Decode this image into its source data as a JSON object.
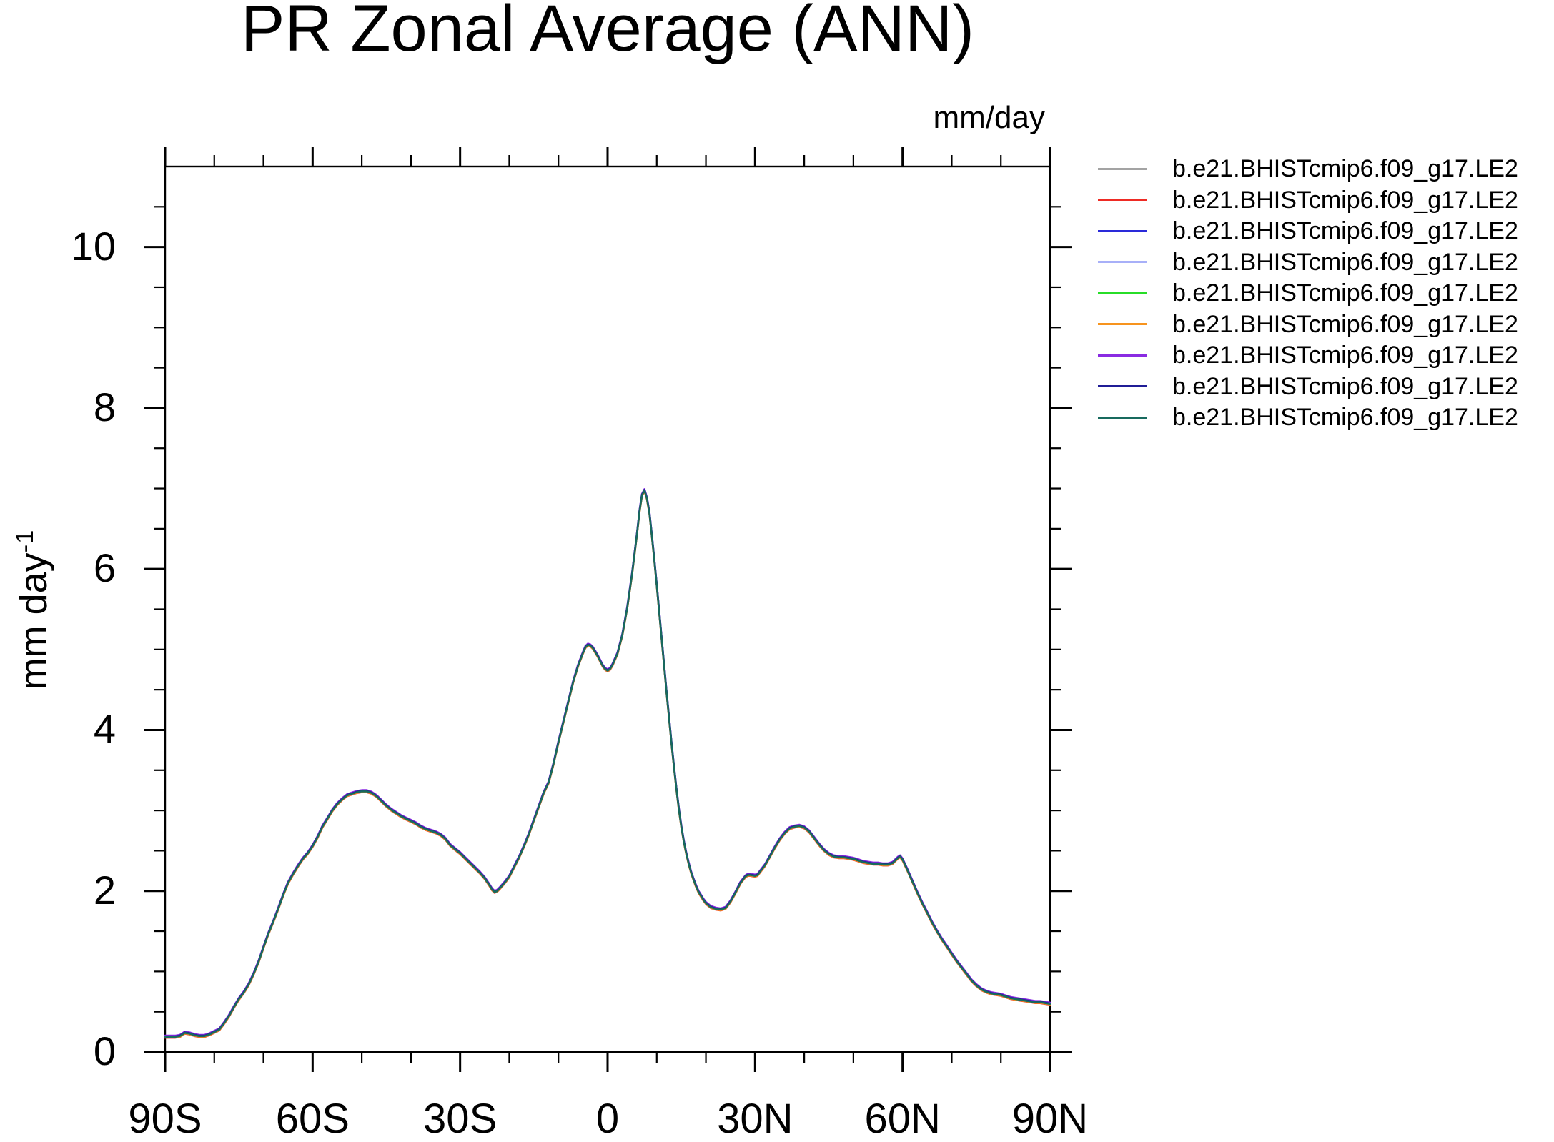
{
  "title": "PR Zonal Average (ANN)",
  "units_label": "mm/day",
  "y_axis_label": {
    "text": "mm day",
    "sup": "-1"
  },
  "legend": {
    "entries": [
      {
        "label": "b.e21.BHISTcmip6.f09_g17.LE2",
        "color": "#a3a3a3"
      },
      {
        "label": "b.e21.BHISTcmip6.f09_g17.LE2",
        "color": "#ee2b24"
      },
      {
        "label": "b.e21.BHISTcmip6.f09_g17.LE2",
        "color": "#2a2ad9"
      },
      {
        "label": "b.e21.BHISTcmip6.f09_g17.LE2",
        "color": "#a8b0f8"
      },
      {
        "label": "b.e21.BHISTcmip6.f09_g17.LE2",
        "color": "#27dd27"
      },
      {
        "label": "b.e21.BHISTcmip6.f09_g17.LE2",
        "color": "#f7941e"
      },
      {
        "label": "b.e21.BHISTcmip6.f09_g17.LE2",
        "color": "#8a2be2"
      },
      {
        "label": "b.e21.BHISTcmip6.f09_g17.LE2",
        "color": "#201d96"
      },
      {
        "label": "b.e21.BHISTcmip6.f09_g17.LE2",
        "color": "#186a5e"
      }
    ]
  },
  "chart_data": {
    "type": "line",
    "title": "PR Zonal Average (ANN)",
    "ylabel": "mm day^-1",
    "units": "mm/day",
    "xlim": [
      -90,
      90
    ],
    "ylim": [
      0,
      11
    ],
    "x_ticks_deg": [
      -90,
      -60,
      -30,
      0,
      30,
      60,
      90
    ],
    "x_tick_labels": [
      "90S",
      "60S",
      "30S",
      "0",
      "30N",
      "60N",
      "90N"
    ],
    "y_ticks": [
      0,
      2,
      4,
      6,
      8,
      10
    ],
    "y_tick_labels": [
      "0",
      "2",
      "4",
      "6",
      "8",
      "10"
    ],
    "x_minor_step_deg": 10,
    "y_minor_step": 0.5,
    "grid": false,
    "legend_position": "outside-upper-right",
    "overlap_note": "all 9 ensemble members visually coincide along one curve",
    "members": [
      {
        "name": "b.e21.BHISTcmip6.f09_g17.LE2",
        "color": "#a3a3a3"
      },
      {
        "name": "b.e21.BHISTcmip6.f09_g17.LE2",
        "color": "#ee2b24"
      },
      {
        "name": "b.e21.BHISTcmip6.f09_g17.LE2",
        "color": "#2a2ad9"
      },
      {
        "name": "b.e21.BHISTcmip6.f09_g17.LE2",
        "color": "#a8b0f8"
      },
      {
        "name": "b.e21.BHISTcmip6.f09_g17.LE2",
        "color": "#27dd27"
      },
      {
        "name": "b.e21.BHISTcmip6.f09_g17.LE2",
        "color": "#f7941e"
      },
      {
        "name": "b.e21.BHISTcmip6.f09_g17.LE2",
        "color": "#8a2be2"
      },
      {
        "name": "b.e21.BHISTcmip6.f09_g17.LE2",
        "color": "#201d96"
      },
      {
        "name": "b.e21.BHISTcmip6.f09_g17.LE2",
        "color": "#186a5e"
      }
    ],
    "shared_profile_lat_mmday": [
      [
        -90,
        0.19
      ],
      [
        -88,
        0.19
      ],
      [
        -87,
        0.2
      ],
      [
        -86,
        0.24
      ],
      [
        -85,
        0.23
      ],
      [
        -84,
        0.21
      ],
      [
        -83,
        0.2
      ],
      [
        -82,
        0.2
      ],
      [
        -81,
        0.22
      ],
      [
        -80,
        0.25
      ],
      [
        -79,
        0.28
      ],
      [
        -78,
        0.36
      ],
      [
        -77,
        0.45
      ],
      [
        -76,
        0.56
      ],
      [
        -75,
        0.66
      ],
      [
        -74,
        0.74
      ],
      [
        -73,
        0.84
      ],
      [
        -72,
        0.97
      ],
      [
        -71,
        1.12
      ],
      [
        -70,
        1.3
      ],
      [
        -69,
        1.47
      ],
      [
        -68,
        1.62
      ],
      [
        -67,
        1.78
      ],
      [
        -66,
        1.95
      ],
      [
        -65,
        2.1
      ],
      [
        -64,
        2.21
      ],
      [
        -63,
        2.31
      ],
      [
        -62,
        2.4
      ],
      [
        -61,
        2.47
      ],
      [
        -60,
        2.56
      ],
      [
        -59,
        2.67
      ],
      [
        -58,
        2.8
      ],
      [
        -57,
        2.9
      ],
      [
        -56,
        3.0
      ],
      [
        -55,
        3.08
      ],
      [
        -54,
        3.14
      ],
      [
        -53,
        3.19
      ],
      [
        -52,
        3.21
      ],
      [
        -51,
        3.23
      ],
      [
        -50,
        3.24
      ],
      [
        -49,
        3.24
      ],
      [
        -48,
        3.22
      ],
      [
        -47,
        3.18
      ],
      [
        -46,
        3.12
      ],
      [
        -45,
        3.06
      ],
      [
        -44,
        3.01
      ],
      [
        -43,
        2.97
      ],
      [
        -42,
        2.93
      ],
      [
        -41,
        2.9
      ],
      [
        -40,
        2.87
      ],
      [
        -39,
        2.84
      ],
      [
        -38,
        2.8
      ],
      [
        -37,
        2.77
      ],
      [
        -36,
        2.75
      ],
      [
        -35,
        2.73
      ],
      [
        -34,
        2.7
      ],
      [
        -33,
        2.65
      ],
      [
        -32,
        2.57
      ],
      [
        -31,
        2.52
      ],
      [
        -30,
        2.47
      ],
      [
        -29,
        2.41
      ],
      [
        -28,
        2.35
      ],
      [
        -27,
        2.29
      ],
      [
        -26,
        2.23
      ],
      [
        -25,
        2.16
      ],
      [
        -24,
        2.07
      ],
      [
        -23.5,
        2.02
      ],
      [
        -23,
        1.99
      ],
      [
        -22.5,
        2.0
      ],
      [
        -22,
        2.03
      ],
      [
        -21,
        2.1
      ],
      [
        -20,
        2.18
      ],
      [
        -19,
        2.3
      ],
      [
        -18,
        2.42
      ],
      [
        -17,
        2.56
      ],
      [
        -16,
        2.71
      ],
      [
        -15,
        2.88
      ],
      [
        -14,
        3.05
      ],
      [
        -13,
        3.22
      ],
      [
        -12,
        3.35
      ],
      [
        -11,
        3.58
      ],
      [
        -10,
        3.85
      ],
      [
        -9,
        4.1
      ],
      [
        -8,
        4.35
      ],
      [
        -7,
        4.6
      ],
      [
        -6,
        4.8
      ],
      [
        -5,
        4.96
      ],
      [
        -4.5,
        5.03
      ],
      [
        -4,
        5.06
      ],
      [
        -3.5,
        5.05
      ],
      [
        -3,
        5.02
      ],
      [
        -2,
        4.92
      ],
      [
        -1,
        4.8
      ],
      [
        -0.5,
        4.76
      ],
      [
        0,
        4.74
      ],
      [
        0.5,
        4.76
      ],
      [
        1,
        4.81
      ],
      [
        2,
        4.95
      ],
      [
        3,
        5.18
      ],
      [
        4,
        5.52
      ],
      [
        5,
        5.95
      ],
      [
        6,
        6.45
      ],
      [
        6.5,
        6.72
      ],
      [
        7,
        6.92
      ],
      [
        7.5,
        6.98
      ],
      [
        8,
        6.88
      ],
      [
        8.5,
        6.7
      ],
      [
        9,
        6.42
      ],
      [
        9.5,
        6.12
      ],
      [
        10,
        5.8
      ],
      [
        10.5,
        5.47
      ],
      [
        11,
        5.13
      ],
      [
        11.5,
        4.8
      ],
      [
        12,
        4.47
      ],
      [
        12.5,
        4.15
      ],
      [
        13,
        3.84
      ],
      [
        13.5,
        3.55
      ],
      [
        14,
        3.27
      ],
      [
        14.5,
        3.02
      ],
      [
        15,
        2.8
      ],
      [
        15.5,
        2.62
      ],
      [
        16,
        2.47
      ],
      [
        16.5,
        2.34
      ],
      [
        17,
        2.23
      ],
      [
        17.5,
        2.14
      ],
      [
        18,
        2.06
      ],
      [
        18.5,
        1.99
      ],
      [
        19,
        1.94
      ],
      [
        19.5,
        1.89
      ],
      [
        20,
        1.85
      ],
      [
        21,
        1.8
      ],
      [
        22,
        1.78
      ],
      [
        23,
        1.77
      ],
      [
        24,
        1.79
      ],
      [
        25,
        1.87
      ],
      [
        26,
        1.98
      ],
      [
        27,
        2.1
      ],
      [
        28,
        2.18
      ],
      [
        28.5,
        2.2
      ],
      [
        29,
        2.2
      ],
      [
        30,
        2.19
      ],
      [
        30.5,
        2.2
      ],
      [
        31,
        2.24
      ],
      [
        32,
        2.32
      ],
      [
        33,
        2.43
      ],
      [
        34,
        2.54
      ],
      [
        35,
        2.64
      ],
      [
        36,
        2.72
      ],
      [
        37,
        2.78
      ],
      [
        38,
        2.8
      ],
      [
        39,
        2.81
      ],
      [
        40,
        2.79
      ],
      [
        41,
        2.74
      ],
      [
        42,
        2.66
      ],
      [
        43,
        2.58
      ],
      [
        44,
        2.51
      ],
      [
        45,
        2.46
      ],
      [
        46,
        2.43
      ],
      [
        47,
        2.42
      ],
      [
        48,
        2.42
      ],
      [
        49,
        2.41
      ],
      [
        50,
        2.4
      ],
      [
        51,
        2.38
      ],
      [
        52,
        2.36
      ],
      [
        53,
        2.35
      ],
      [
        54,
        2.34
      ],
      [
        55,
        2.34
      ],
      [
        56,
        2.33
      ],
      [
        57,
        2.33
      ],
      [
        58,
        2.35
      ],
      [
        59,
        2.41
      ],
      [
        59.5,
        2.43
      ],
      [
        60,
        2.39
      ],
      [
        61,
        2.26
      ],
      [
        62,
        2.12
      ],
      [
        63,
        1.98
      ],
      [
        64,
        1.85
      ],
      [
        65,
        1.73
      ],
      [
        66,
        1.61
      ],
      [
        67,
        1.5
      ],
      [
        68,
        1.4
      ],
      [
        69,
        1.31
      ],
      [
        70,
        1.22
      ],
      [
        71,
        1.13
      ],
      [
        72,
        1.05
      ],
      [
        73,
        0.97
      ],
      [
        74,
        0.89
      ],
      [
        75,
        0.83
      ],
      [
        76,
        0.78
      ],
      [
        77,
        0.75
      ],
      [
        78,
        0.73
      ],
      [
        79,
        0.72
      ],
      [
        80,
        0.71
      ],
      [
        81,
        0.69
      ],
      [
        82,
        0.67
      ],
      [
        83,
        0.66
      ],
      [
        84,
        0.65
      ],
      [
        85,
        0.64
      ],
      [
        86,
        0.63
      ],
      [
        87,
        0.62
      ],
      [
        88,
        0.62
      ],
      [
        89,
        0.61
      ],
      [
        90,
        0.6
      ]
    ]
  }
}
